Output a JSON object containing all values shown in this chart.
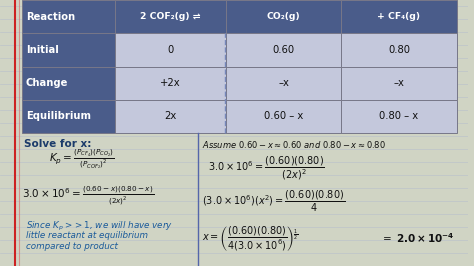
{
  "bg_color": "#d0d4c4",
  "notebook_line_color": "#b8c0cc",
  "red_line_color": "#cc2222",
  "pink_line_color": "#dd6666",
  "table": {
    "header_bg": "#4a5c8a",
    "cell_bg": "#c4c8dc",
    "border_color": "#777788",
    "rows": [
      "Reaction",
      "Initial",
      "Change",
      "Equilibrium"
    ],
    "col2": [
      "2 COF₂(g) ⇌",
      "0",
      "+2x",
      "2x"
    ],
    "col3": [
      "CO₂(g)",
      "0.60",
      "–x",
      "0.60 – x"
    ],
    "col4": [
      "+ CF₄(g)",
      "0.80",
      "–x",
      "0.80 – x"
    ]
  },
  "divider_color": "#5566aa",
  "left_title_color": "#1a3a6a",
  "blue_italic_color": "#1a5a9a",
  "right_title_color": "#111111",
  "formula_color": "#111111"
}
